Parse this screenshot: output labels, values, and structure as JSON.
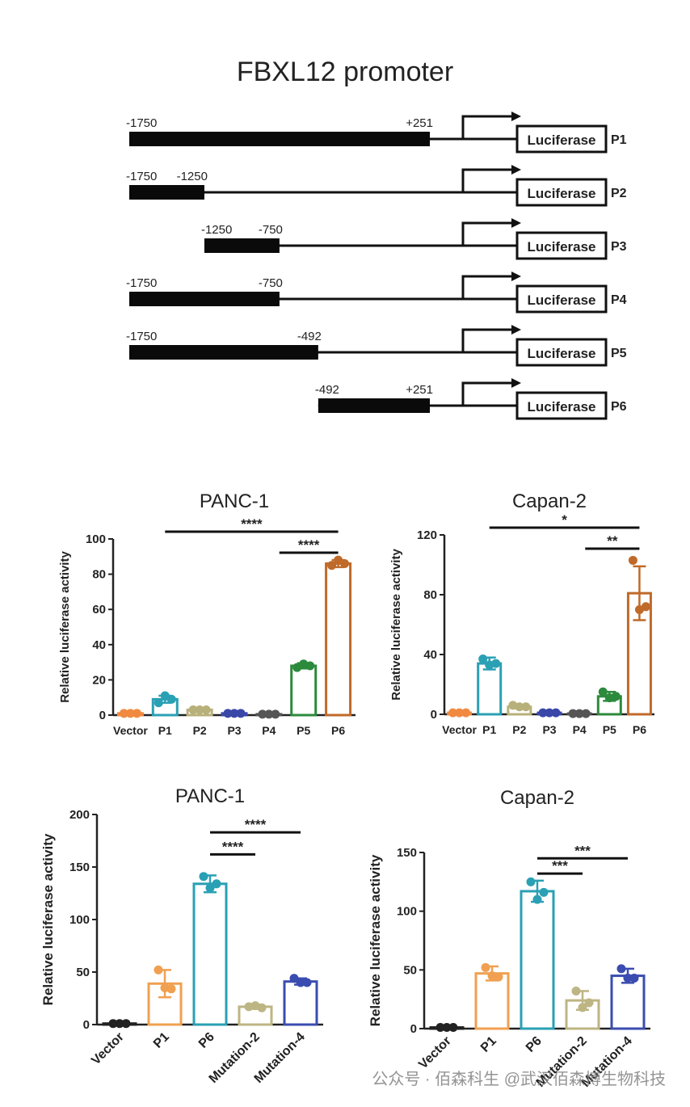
{
  "title": "FBXL12 promoter",
  "constructs": [
    {
      "name": "P1",
      "start": -1750,
      "end": 251,
      "labels": [
        "-1750",
        "+251"
      ]
    },
    {
      "name": "P2",
      "start": -1750,
      "end": -1250,
      "labels": [
        "-1750",
        "-1250"
      ]
    },
    {
      "name": "P3",
      "start": -1250,
      "end": -750,
      "labels": [
        "-1250",
        "-750"
      ]
    },
    {
      "name": "P4",
      "start": -1750,
      "end": -750,
      "labels": [
        "-1750",
        "-750"
      ]
    },
    {
      "name": "P5",
      "start": -1750,
      "end": -492,
      "labels": [
        "-1750",
        "-492"
      ]
    },
    {
      "name": "P6",
      "start": -492,
      "end": 251,
      "labels": [
        "-492",
        "+251"
      ]
    }
  ],
  "reporter_label": "Luciferase",
  "colors": {
    "Vector": "#222222",
    "P1": "#2aa0b4",
    "P2": "#b8b07a",
    "P3": "#3a47a8",
    "P4": "#555555",
    "P5": "#2c8a3c",
    "P6": "#c06a2a",
    "P1_b": "#f0a050",
    "P6_b": "#2aa0b4",
    "Mutation-2": "#bdb583",
    "Mutation-4": "#3a4cb0",
    "Vector_a": "#f08a40"
  },
  "chart_data": [
    {
      "type": "bar",
      "title": "PANC-1",
      "ylabel": "Relative luciferase activity",
      "categories": [
        "Vector",
        "P1",
        "P2",
        "P3",
        "P4",
        "P5",
        "P6"
      ],
      "values": [
        1,
        9,
        3,
        1,
        0.5,
        28,
        86
      ],
      "errors": [
        0.5,
        2,
        0.5,
        0.3,
        0.2,
        1.5,
        2
      ],
      "points": [
        [
          1,
          1,
          1
        ],
        [
          7,
          11,
          9
        ],
        [
          3,
          3,
          3
        ],
        [
          1,
          1,
          1
        ],
        [
          0.5,
          0.5,
          0.5
        ],
        [
          27,
          29,
          28
        ],
        [
          85,
          88,
          86
        ]
      ],
      "ylim": [
        0,
        100
      ],
      "yticks": [
        "0",
        "20",
        "40",
        "60",
        "80",
        "100"
      ],
      "significance": [
        {
          "from": "P1",
          "to": "P6",
          "label": "****"
        },
        {
          "from": "P5",
          "to": "P6",
          "label": "****"
        }
      ],
      "rotated_labels": false
    },
    {
      "type": "bar",
      "title": "Capan-2",
      "ylabel": "Relative luciferase activity",
      "categories": [
        "Vector",
        "P1",
        "P2",
        "P3",
        "P4",
        "P5",
        "P6"
      ],
      "values": [
        1,
        34,
        5,
        1,
        0.5,
        12,
        81
      ],
      "errors": [
        0.5,
        4,
        1,
        0.3,
        0.2,
        3,
        18
      ],
      "points": [
        [
          1,
          1,
          1
        ],
        [
          37,
          33,
          34
        ],
        [
          6,
          5,
          5
        ],
        [
          1,
          1,
          1
        ],
        [
          0.5,
          0.5,
          0.5
        ],
        [
          15,
          11,
          12
        ],
        [
          103,
          70,
          72
        ]
      ],
      "ylim": [
        0,
        120
      ],
      "yticks": [
        "0",
        "40",
        "80",
        "120"
      ],
      "significance": [
        {
          "from": "P1",
          "to": "P6",
          "label": "*"
        },
        {
          "from": "P5",
          "to": "P6",
          "label": "**"
        }
      ],
      "rotated_labels": false
    },
    {
      "type": "bar",
      "title": "PANC-1",
      "ylabel": "Relative luciferase activity",
      "categories": [
        "Vector",
        "P1",
        "P6",
        "Mutation-2",
        "Mutation-4"
      ],
      "values": [
        1,
        39,
        134,
        17,
        41
      ],
      "errors": [
        0.5,
        13,
        8,
        2,
        3
      ],
      "points": [
        [
          1,
          1,
          1
        ],
        [
          52,
          35,
          34
        ],
        [
          141,
          130,
          134
        ],
        [
          17,
          18,
          16
        ],
        [
          44,
          40,
          40
        ]
      ],
      "ylim": [
        0,
        200
      ],
      "yticks": [
        "0",
        "50",
        "100",
        "150",
        "200"
      ],
      "significance": [
        {
          "from": "P6",
          "to": "Mutation-2",
          "label": "****"
        },
        {
          "from": "P6",
          "to": "Mutation-4",
          "label": "****"
        }
      ],
      "rotated_labels": true
    },
    {
      "type": "bar",
      "title": "Capan-2",
      "ylabel": "Relative luciferase activity",
      "categories": [
        "Vector",
        "P1",
        "P6",
        "Mutation-2",
        "Mutation-4"
      ],
      "values": [
        1,
        47,
        117,
        24,
        45
      ],
      "errors": [
        0.5,
        6,
        9,
        8,
        6
      ],
      "points": [
        [
          1,
          1,
          1
        ],
        [
          52,
          45,
          44
        ],
        [
          125,
          110,
          116
        ],
        [
          32,
          18,
          22
        ],
        [
          51,
          43,
          43
        ]
      ],
      "ylim": [
        0,
        150
      ],
      "yticks": [
        "0",
        "50",
        "100",
        "150"
      ],
      "significance": [
        {
          "from": "P6",
          "to": "Mutation-2",
          "label": "***"
        },
        {
          "from": "P6",
          "to": "Mutation-4",
          "label": "***"
        }
      ],
      "rotated_labels": true
    }
  ],
  "watermark": "公众号 · 佰森科生 @武汉佰森博生物科技"
}
